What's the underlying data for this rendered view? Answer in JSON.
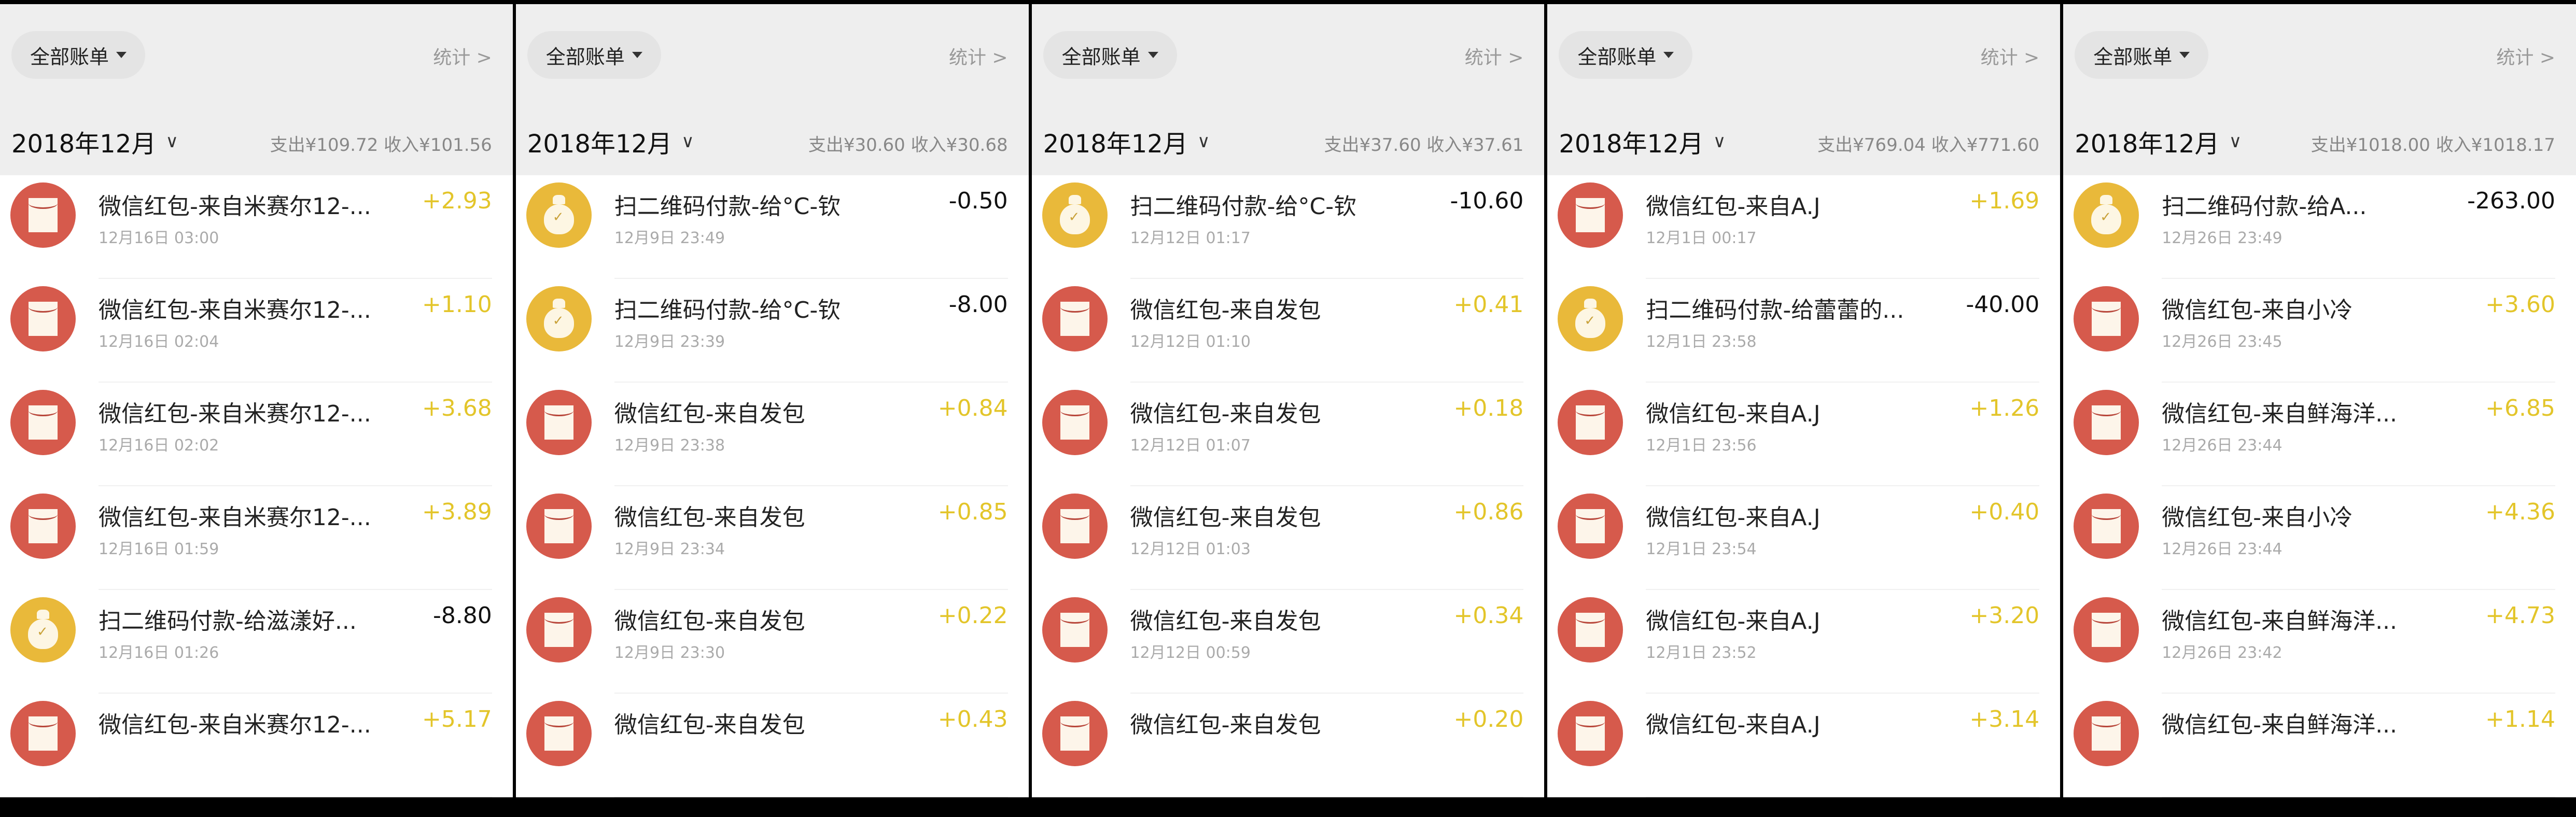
{
  "colors": {
    "redpacket": "#d65a4c",
    "payment": "#e9b93a",
    "income_amount": "#e3c52a",
    "expense_amount": "#111111",
    "header_bg": "#eeeeee"
  },
  "panels": [
    {
      "filter_label": "全部账单",
      "stats_label": "统计 >",
      "month": "2018年12月",
      "summary": "支出¥109.72  收入¥101.56",
      "rows": [
        {
          "icon": "red-envelope-icon",
          "title": "微信红包-来自米赛尔12-...",
          "date": "12月16日 03:00",
          "amount": "+2.93",
          "type": "in"
        },
        {
          "icon": "red-envelope-icon",
          "title": "微信红包-来自米赛尔12-...",
          "date": "12月16日 02:04",
          "amount": "+1.10",
          "type": "in"
        },
        {
          "icon": "red-envelope-icon",
          "title": "微信红包-来自米赛尔12-...",
          "date": "12月16日 02:02",
          "amount": "+3.68",
          "type": "in"
        },
        {
          "icon": "red-envelope-icon",
          "title": "微信红包-来自米赛尔12-...",
          "date": "12月16日 01:59",
          "amount": "+3.89",
          "type": "in"
        },
        {
          "icon": "money-bag-icon",
          "title": "扫二维码付款-给滋漾好...",
          "date": "12月16日 01:26",
          "amount": "-8.80",
          "type": "out"
        },
        {
          "icon": "red-envelope-icon",
          "title": "微信红包-来自米赛尔12-...",
          "date": "",
          "amount": "+5.17",
          "type": "in"
        }
      ]
    },
    {
      "filter_label": "全部账单",
      "stats_label": "统计 >",
      "month": "2018年12月",
      "summary": "支出¥30.60  收入¥30.68",
      "rows": [
        {
          "icon": "money-bag-icon",
          "title": "扫二维码付款-给°C-钦",
          "date": "12月9日 23:49",
          "amount": "-0.50",
          "type": "out"
        },
        {
          "icon": "money-bag-icon",
          "title": "扫二维码付款-给°C-钦",
          "date": "12月9日 23:39",
          "amount": "-8.00",
          "type": "out"
        },
        {
          "icon": "red-envelope-icon",
          "title": "微信红包-来自发包",
          "date": "12月9日 23:38",
          "amount": "+0.84",
          "type": "in"
        },
        {
          "icon": "red-envelope-icon",
          "title": "微信红包-来自发包",
          "date": "12月9日 23:34",
          "amount": "+0.85",
          "type": "in"
        },
        {
          "icon": "red-envelope-icon",
          "title": "微信红包-来自发包",
          "date": "12月9日 23:30",
          "amount": "+0.22",
          "type": "in"
        },
        {
          "icon": "red-envelope-icon",
          "title": "微信红包-来自发包",
          "date": "",
          "amount": "+0.43",
          "type": "in"
        }
      ]
    },
    {
      "filter_label": "全部账单",
      "stats_label": "统计 >",
      "month": "2018年12月",
      "summary": "支出¥37.60  收入¥37.61",
      "rows": [
        {
          "icon": "money-bag-icon",
          "title": "扫二维码付款-给°C-钦",
          "date": "12月12日 01:17",
          "amount": "-10.60",
          "type": "out"
        },
        {
          "icon": "red-envelope-icon",
          "title": "微信红包-来自发包",
          "date": "12月12日 01:10",
          "amount": "+0.41",
          "type": "in"
        },
        {
          "icon": "red-envelope-icon",
          "title": "微信红包-来自发包",
          "date": "12月12日 01:07",
          "amount": "+0.18",
          "type": "in"
        },
        {
          "icon": "red-envelope-icon",
          "title": "微信红包-来自发包",
          "date": "12月12日 01:03",
          "amount": "+0.86",
          "type": "in"
        },
        {
          "icon": "red-envelope-icon",
          "title": "微信红包-来自发包",
          "date": "12月12日 00:59",
          "amount": "+0.34",
          "type": "in"
        },
        {
          "icon": "red-envelope-icon",
          "title": "微信红包-来自发包",
          "date": "",
          "amount": "+0.20",
          "type": "in"
        }
      ]
    },
    {
      "filter_label": "全部账单",
      "stats_label": "统计 >",
      "month": "2018年12月",
      "summary": "支出¥769.04  收入¥771.60",
      "rows": [
        {
          "icon": "red-envelope-icon",
          "title": "微信红包-来自A.J",
          "date": "12月1日 00:17",
          "amount": "+1.69",
          "type": "in"
        },
        {
          "icon": "money-bag-icon",
          "title": "扫二维码付款-给蕾蕾的...",
          "date": "12月1日 23:58",
          "amount": "-40.00",
          "type": "out"
        },
        {
          "icon": "red-envelope-icon",
          "title": "微信红包-来自A.J",
          "date": "12月1日 23:56",
          "amount": "+1.26",
          "type": "in"
        },
        {
          "icon": "red-envelope-icon",
          "title": "微信红包-来自A.J",
          "date": "12月1日 23:54",
          "amount": "+0.40",
          "type": "in"
        },
        {
          "icon": "red-envelope-icon",
          "title": "微信红包-来自A.J",
          "date": "12月1日 23:52",
          "amount": "+3.20",
          "type": "in"
        },
        {
          "icon": "red-envelope-icon",
          "title": "微信红包-来自A.J",
          "date": "",
          "amount": "+3.14",
          "type": "in"
        }
      ]
    },
    {
      "filter_label": "全部账单",
      "stats_label": "统计 >",
      "month": "2018年12月",
      "summary": "支出¥1018.00  收入¥1018.17",
      "rows": [
        {
          "icon": "money-bag-icon",
          "title": "扫二维码付款-给A...",
          "date": "12月26日 23:49",
          "amount": "-263.00",
          "type": "out"
        },
        {
          "icon": "red-envelope-icon",
          "title": "微信红包-来自小冷",
          "date": "12月26日 23:45",
          "amount": "+3.60",
          "type": "in"
        },
        {
          "icon": "red-envelope-icon",
          "title": "微信红包-来自鲜海洋...",
          "date": "12月26日 23:44",
          "amount": "+6.85",
          "type": "in"
        },
        {
          "icon": "red-envelope-icon",
          "title": "微信红包-来自小冷",
          "date": "12月26日 23:44",
          "amount": "+4.36",
          "type": "in"
        },
        {
          "icon": "red-envelope-icon",
          "title": "微信红包-来自鲜海洋...",
          "date": "12月26日 23:42",
          "amount": "+4.73",
          "type": "in"
        },
        {
          "icon": "red-envelope-icon",
          "title": "微信红包-来自鲜海洋...",
          "date": "",
          "amount": "+1.14",
          "type": "in"
        }
      ]
    }
  ]
}
